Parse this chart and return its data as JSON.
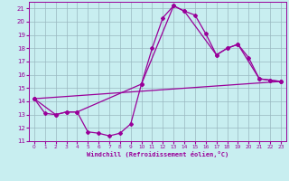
{
  "xlabel": "Windchill (Refroidissement éolien,°C)",
  "bg_color": "#c8eef0",
  "grid_color": "#9ab8c0",
  "line_color": "#990099",
  "xlim": [
    -0.5,
    23.5
  ],
  "ylim": [
    11,
    21.5
  ],
  "yticks": [
    11,
    12,
    13,
    14,
    15,
    16,
    17,
    18,
    19,
    20,
    21
  ],
  "xticks": [
    0,
    1,
    2,
    3,
    4,
    5,
    6,
    7,
    8,
    9,
    10,
    11,
    12,
    13,
    14,
    15,
    16,
    17,
    18,
    19,
    20,
    21,
    22,
    23
  ],
  "line1_x": [
    0,
    1,
    2,
    3,
    4,
    5,
    6,
    7,
    8,
    9,
    10,
    11,
    12,
    13,
    14,
    15,
    16,
    17,
    18,
    19,
    20,
    21,
    22,
    23
  ],
  "line1_y": [
    14.2,
    13.1,
    13.0,
    13.2,
    13.2,
    11.7,
    11.6,
    11.4,
    11.6,
    12.3,
    15.3,
    18.0,
    20.3,
    21.2,
    20.8,
    20.5,
    19.1,
    17.5,
    18.0,
    18.3,
    17.3,
    15.7,
    15.6,
    15.5
  ],
  "line2_x": [
    0,
    2,
    3,
    4,
    10,
    13,
    14,
    17,
    18,
    19,
    21,
    22,
    23
  ],
  "line2_y": [
    14.2,
    13.0,
    13.2,
    13.2,
    15.3,
    21.2,
    20.8,
    17.5,
    18.0,
    18.3,
    15.7,
    15.6,
    15.5
  ],
  "line3_x": [
    0,
    23
  ],
  "line3_y": [
    14.2,
    15.5
  ]
}
